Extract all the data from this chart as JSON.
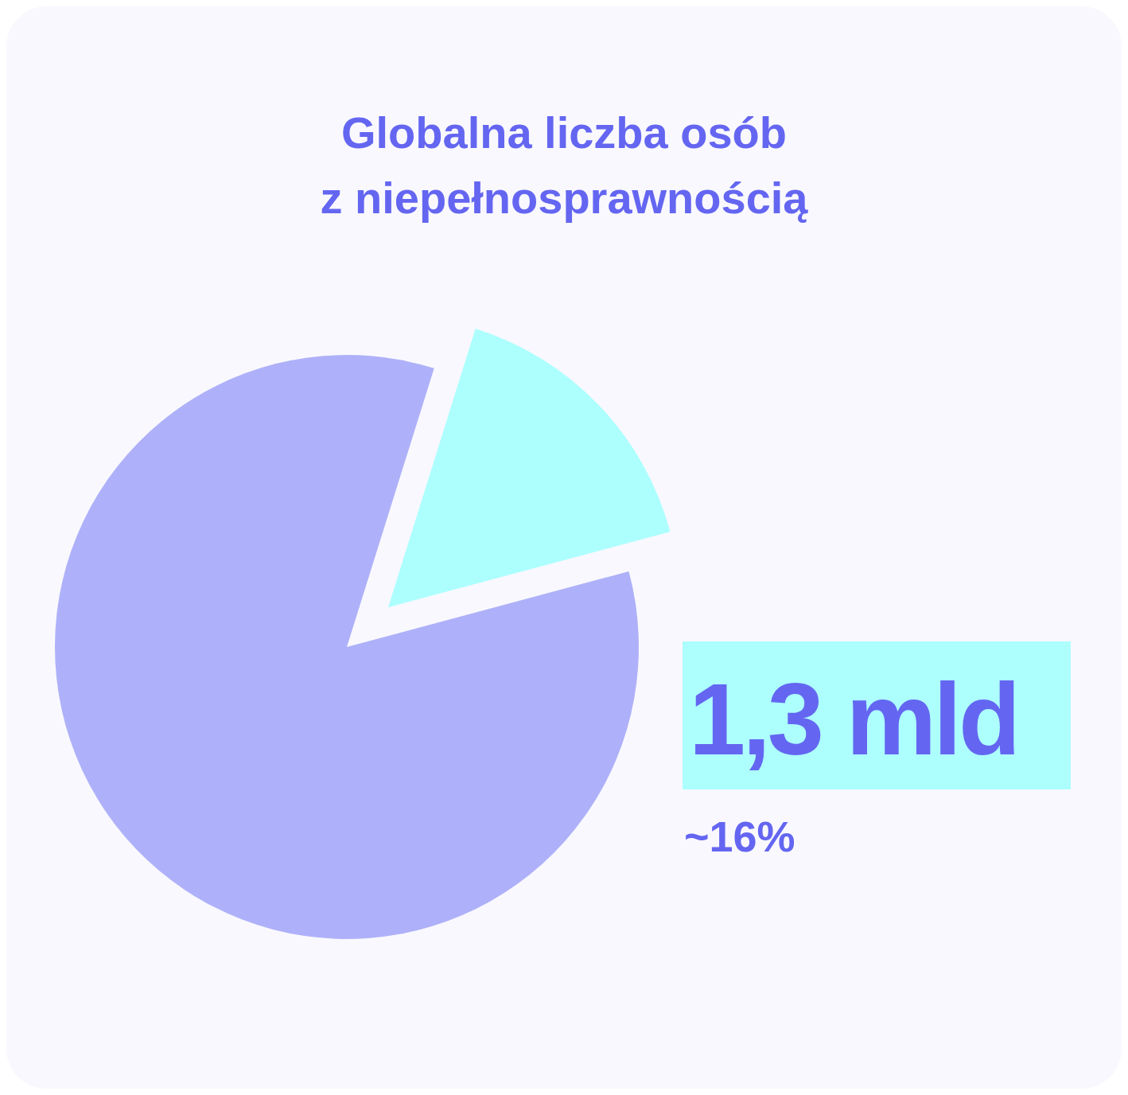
{
  "chart_data": {
    "type": "pie",
    "title": "Globalna liczba osób\nz niepełnosprawnością",
    "categories": [
      null,
      null
    ],
    "values": [
      16,
      84
    ],
    "colors": [
      "#adfffe",
      "#aeb1f9"
    ],
    "annotations": [
      "1,3 mld",
      "~16%"
    ]
  }
}
